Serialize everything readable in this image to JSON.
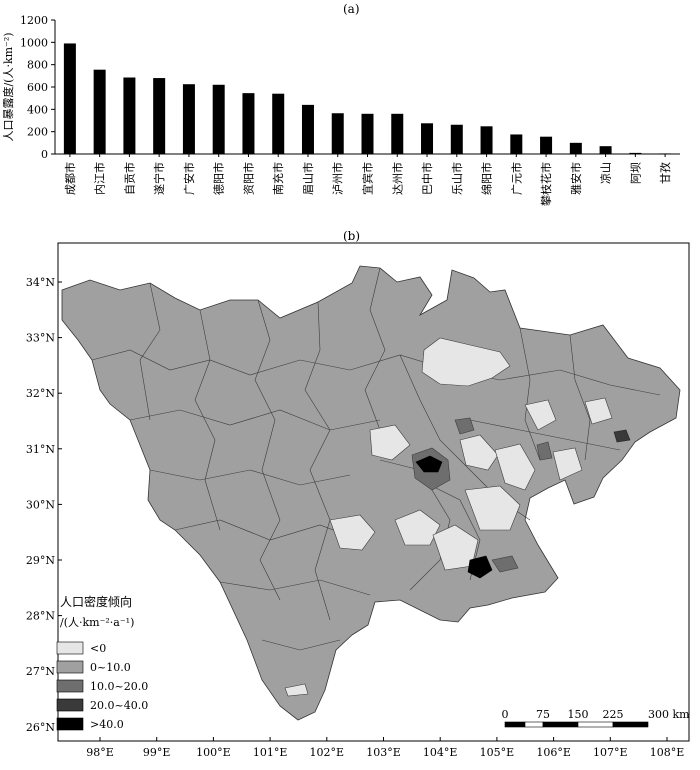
{
  "panel_a_label": "(a)",
  "panel_b_label": "(b)",
  "chart_data": [
    {
      "type": "bar",
      "ylabel": "人口暴露度/(人·km⁻²)",
      "ylim": [
        0,
        1200
      ],
      "yticks": [
        0,
        200,
        400,
        600,
        800,
        1000,
        1200
      ],
      "categories": [
        "成都市",
        "内江市",
        "自贡市",
        "遂宁市",
        "广安市",
        "德阳市",
        "资阳市",
        "南充市",
        "眉山市",
        "泸州市",
        "宜宾市",
        "达州市",
        "巴中市",
        "乐山市",
        "绵阳市",
        "广元市",
        "攀枝花市",
        "雅安市",
        "凉山",
        "阿坝",
        "甘孜"
      ],
      "values": [
        990,
        755,
        685,
        680,
        625,
        620,
        545,
        540,
        440,
        365,
        360,
        360,
        275,
        262,
        248,
        175,
        155,
        100,
        70,
        10,
        5
      ],
      "color": "#000000"
    },
    {
      "type": "map",
      "x_ticks": [
        "98°E",
        "99°E",
        "100°E",
        "101°E",
        "102°E",
        "103°E",
        "104°E",
        "105°E",
        "106°E",
        "107°E",
        "108°E"
      ],
      "y_ticks": [
        "34°N",
        "33°N",
        "32°N",
        "31°N",
        "30°N",
        "29°N",
        "28°N",
        "27°N",
        "26°N"
      ],
      "legend": {
        "title": "人口密度倾向",
        "unit": "/(人·km⁻²·a⁻¹)",
        "items": [
          {
            "label": "<0",
            "color": "#e6e6e6"
          },
          {
            "label": "0~10.0",
            "color": "#a0a0a0"
          },
          {
            "label": "10.0~20.0",
            "color": "#6e6e6e"
          },
          {
            "label": "20.0~40.0",
            "color": "#3a3a3a"
          },
          {
            "label": ">40.0",
            "color": "#000000"
          }
        ]
      },
      "scalebar": {
        "ticks": [
          "0",
          "75",
          "150",
          "225",
          "300 km"
        ]
      }
    }
  ]
}
